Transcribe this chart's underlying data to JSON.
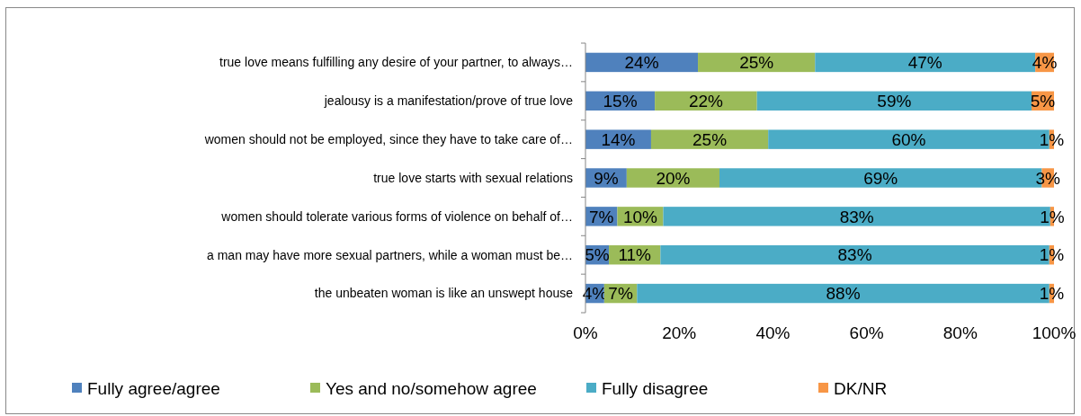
{
  "chart_data": {
    "type": "bar",
    "orientation": "horizontal",
    "stacked": true,
    "categories": [
      "true love means fulfilling any desire of your partner, to always…",
      "jealousy is a manifestation/prove of true love",
      "women should not be employed, since they have to take care of…",
      "true love starts with sexual relations",
      "women should tolerate various forms of violence on behalf of…",
      "a man may have more sexual partners, while a woman must be…",
      "the unbeaten woman is like an unswept house"
    ],
    "series": [
      {
        "name": "Fully agree/agree",
        "color": "#4f81bd",
        "values": [
          24,
          14.8,
          14,
          8.8,
          6.8,
          5,
          4
        ],
        "value_labels": [
          "24%",
          "15%",
          "14%",
          "9%",
          "7%",
          "5%",
          "4%"
        ]
      },
      {
        "name": "Yes and no/somehow agree",
        "color": "#9bbb59",
        "values": [
          25,
          21.8,
          25,
          19.8,
          9.8,
          11,
          7
        ],
        "value_labels": [
          "25%",
          "22%",
          "25%",
          "20%",
          "10%",
          "11%",
          "7%"
        ]
      },
      {
        "name": "Fully disagree",
        "color": "#4bacc6",
        "values": [
          47,
          58.6,
          60,
          68.8,
          82.6,
          83,
          88
        ],
        "value_labels": [
          "47%",
          "59%",
          "60%",
          "69%",
          "83%",
          "83%",
          "88%"
        ]
      },
      {
        "name": "DK/NR",
        "color": "#f79646",
        "values": [
          4,
          4.8,
          1,
          2.6,
          0.8,
          1,
          1
        ],
        "value_labels": [
          "4%",
          "5%",
          "1%",
          "3%",
          "1%",
          "1%",
          "1%"
        ]
      }
    ],
    "xlim": [
      0,
      100
    ],
    "xticks": [
      {
        "value": 0,
        "label": "0%"
      },
      {
        "value": 20,
        "label": "20%"
      },
      {
        "value": 40,
        "label": "40%"
      },
      {
        "value": 60,
        "label": "60%"
      },
      {
        "value": 80,
        "label": "80%"
      },
      {
        "value": 100,
        "label": "100%"
      }
    ],
    "legend": "bottom"
  }
}
